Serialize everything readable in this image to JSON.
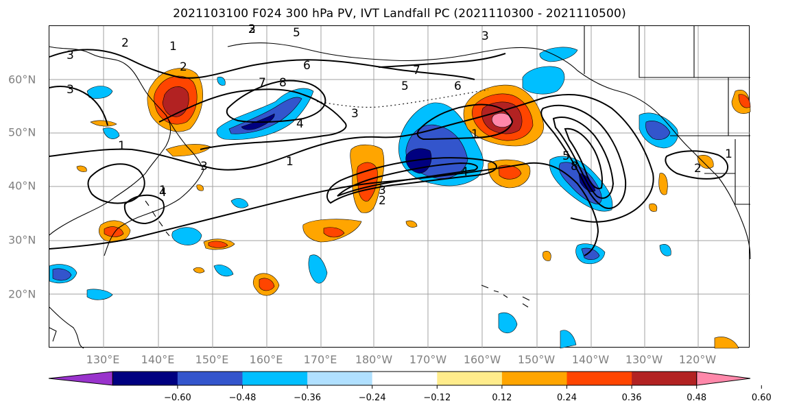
{
  "title": "2021103100 F024 300 hPa PV, IVT Landfall PC (2021110300 - 2021110500)",
  "lat_labels": [
    "60°N",
    "50°N",
    "40°N",
    "30°N",
    "20°N"
  ],
  "lon_labels": [
    "130°E",
    "140°E",
    "150°E",
    "160°E",
    "170°E",
    "180°W",
    "170°W",
    "160°W",
    "150°W",
    "140°W",
    "130°W",
    "120°W"
  ],
  "colorbar": {
    "ticks": [
      "−0.60",
      "−0.48",
      "−0.36",
      "−0.24",
      "−0.12",
      "0.12",
      "0.24",
      "0.36",
      "0.48",
      "0.60"
    ],
    "colors": [
      "#9933cc",
      "#000080",
      "#3355cc",
      "#00bfff",
      "#b0e0ff",
      "#ffffff",
      "#ffec8b",
      "#ffa500",
      "#ff4500",
      "#b22222",
      "#ff88aa"
    ]
  },
  "contour_labels": [
    "3",
    "2",
    "2",
    "3",
    "1",
    "2",
    "3",
    "2",
    "7",
    "6",
    "8",
    "5",
    "5",
    "6",
    "3",
    "4",
    "7",
    "3",
    "1",
    "2",
    "3",
    "4",
    "1",
    "3",
    "2",
    "4",
    "1",
    "5",
    "8",
    "1",
    "1"
  ]
}
